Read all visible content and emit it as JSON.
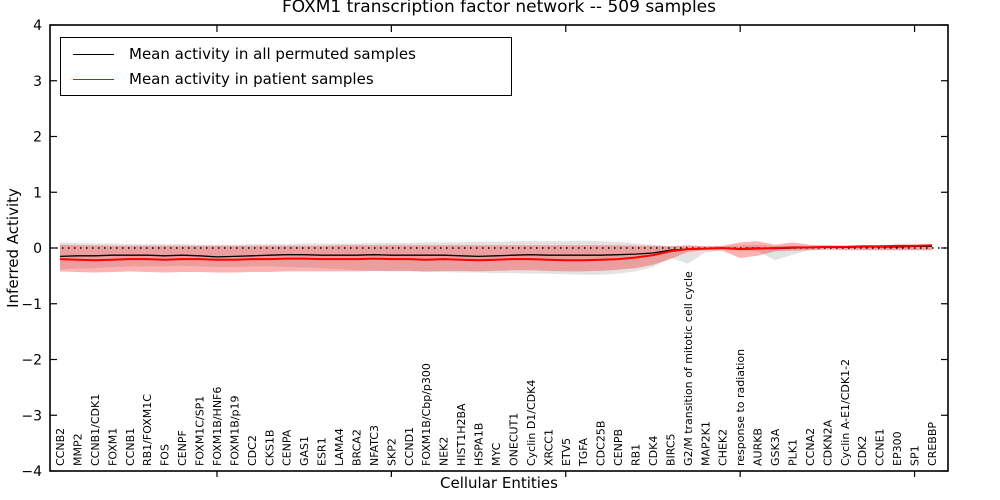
{
  "title": "FOXM1 transcription factor network -- 509 samples",
  "legend": {
    "items": [
      {
        "label": "Mean activity in all permuted samples",
        "color": "#000000"
      },
      {
        "label": "Mean activity in patient samples",
        "color": "#ff0000"
      }
    ]
  },
  "axes": {
    "ylabel": "Inferred Activity",
    "xlabel": "Cellular Entities"
  },
  "chart_data": {
    "type": "line",
    "title": "FOXM1 transcription factor network -- 509 samples",
    "xlabel": "Cellular Entities",
    "ylabel": "Inferred Activity",
    "ylim": [
      -4,
      4
    ],
    "yticks": [
      4,
      3,
      2,
      1,
      0,
      -1,
      -2,
      -3,
      -4
    ],
    "major_x_tick_indices": [
      9,
      19,
      29,
      39,
      49
    ],
    "grid": false,
    "legend_position": "upper left",
    "zero_line": {
      "y": 0,
      "style": "dotted",
      "color": "#000000"
    },
    "categories": [
      "CCNB2",
      "MMP2",
      "CCNB1/CDK1",
      "FOXM1",
      "CCNB1",
      "RB1/FOXM1C",
      "FOS",
      "CENPF",
      "FOXM1C/SP1",
      "FOXM1B/HNF6",
      "FOXM1B/p19",
      "CDC2",
      "CKS1B",
      "CENPA",
      "GAS1",
      "ESR1",
      "LAMA4",
      "BRCA2",
      "NFATC3",
      "SKP2",
      "CCND1",
      "FOXM1B/Cbp/p300",
      "NEK2",
      "HIST1H2BA",
      "HSPA1B",
      "MYC",
      "ONECUT1",
      "Cyclin D1/CDK4",
      "XRCC1",
      "ETV5",
      "TGFA",
      "CDC25B",
      "CENPB",
      "RB1",
      "CDK4",
      "BIRC5",
      "G2/M transition of mitotic cell cycle",
      "MAP2K1",
      "CHEK2",
      "response to radiation",
      "AURKB",
      "GSK3A",
      "PLK1",
      "CCNA2",
      "CDKN2A",
      "Cyclin A-E1/CDK1-2",
      "CDK2",
      "CCNE1",
      "EP300",
      "SP1",
      "CREBBP"
    ],
    "series": [
      {
        "name": "Mean activity in all permuted samples",
        "color": "#000000",
        "values": [
          -0.15,
          -0.14,
          -0.14,
          -0.13,
          -0.13,
          -0.13,
          -0.14,
          -0.13,
          -0.14,
          -0.16,
          -0.15,
          -0.14,
          -0.13,
          -0.12,
          -0.12,
          -0.13,
          -0.13,
          -0.13,
          -0.12,
          -0.13,
          -0.13,
          -0.13,
          -0.13,
          -0.14,
          -0.15,
          -0.14,
          -0.13,
          -0.12,
          -0.13,
          -0.13,
          -0.13,
          -0.13,
          -0.12,
          -0.11,
          -0.09,
          -0.04,
          -0.02,
          -0.01,
          0.0,
          -0.01,
          0.0,
          -0.01,
          0.0,
          0.01,
          0.01,
          0.01,
          0.02,
          0.02,
          0.02,
          0.03,
          0.03
        ]
      },
      {
        "name": "Mean activity in patient samples",
        "color": "#ff0000",
        "values": [
          -0.2,
          -0.21,
          -0.22,
          -0.21,
          -0.2,
          -0.2,
          -0.21,
          -0.2,
          -0.2,
          -0.21,
          -0.21,
          -0.2,
          -0.2,
          -0.19,
          -0.19,
          -0.2,
          -0.2,
          -0.2,
          -0.19,
          -0.2,
          -0.2,
          -0.21,
          -0.2,
          -0.21,
          -0.22,
          -0.21,
          -0.2,
          -0.2,
          -0.21,
          -0.22,
          -0.22,
          -0.21,
          -0.2,
          -0.17,
          -0.13,
          -0.06,
          -0.02,
          -0.01,
          0.0,
          -0.02,
          -0.01,
          0.0,
          0.01,
          0.01,
          0.02,
          0.02,
          0.03,
          0.03,
          0.04,
          0.04,
          0.05
        ]
      }
    ],
    "bands": [
      {
        "name": "permuted-confidence-band",
        "color": "#000000",
        "opacity": 0.11,
        "hi": [
          0.1,
          0.09,
          0.08,
          0.08,
          0.07,
          0.07,
          0.07,
          0.07,
          0.06,
          0.06,
          0.06,
          0.07,
          0.07,
          0.07,
          0.08,
          0.08,
          0.08,
          0.08,
          0.09,
          0.09,
          0.09,
          0.1,
          0.1,
          0.1,
          0.11,
          0.11,
          0.12,
          0.12,
          0.12,
          0.12,
          0.13,
          0.12,
          0.11,
          0.08,
          0.06,
          0.03,
          0.04,
          0.03,
          0.03,
          0.05,
          0.06,
          0.04,
          0.03,
          0.03,
          0.02,
          0.02,
          0.03,
          0.03,
          0.03,
          0.03,
          0.03
        ],
        "lo": [
          -0.38,
          -0.37,
          -0.36,
          -0.34,
          -0.33,
          -0.33,
          -0.33,
          -0.32,
          -0.33,
          -0.34,
          -0.34,
          -0.33,
          -0.33,
          -0.34,
          -0.35,
          -0.36,
          -0.38,
          -0.4,
          -0.41,
          -0.42,
          -0.42,
          -0.43,
          -0.43,
          -0.44,
          -0.44,
          -0.45,
          -0.45,
          -0.46,
          -0.46,
          -0.47,
          -0.48,
          -0.48,
          -0.46,
          -0.42,
          -0.34,
          -0.18,
          -0.28,
          -0.08,
          -0.04,
          -0.05,
          -0.06,
          -0.22,
          -0.12,
          -0.03,
          -0.02,
          -0.02,
          -0.03,
          -0.03,
          -0.03,
          -0.03,
          -0.03
        ]
      },
      {
        "name": "patient-confidence-band",
        "color": "#ff0000",
        "opacity": 0.3,
        "hi": [
          0.06,
          0.05,
          0.05,
          0.04,
          0.04,
          0.04,
          0.04,
          0.04,
          0.04,
          0.04,
          0.04,
          0.04,
          0.04,
          0.04,
          0.04,
          0.04,
          0.05,
          0.05,
          0.05,
          0.05,
          0.05,
          0.05,
          0.05,
          0.05,
          0.05,
          0.05,
          0.05,
          0.05,
          0.05,
          0.05,
          0.05,
          0.05,
          0.05,
          0.04,
          0.04,
          0.03,
          0.05,
          0.03,
          0.04,
          0.1,
          0.12,
          0.06,
          0.1,
          0.06,
          0.05,
          0.04,
          0.04,
          0.04,
          0.04,
          0.04,
          0.04
        ],
        "lo": [
          -0.42,
          -0.43,
          -0.44,
          -0.43,
          -0.42,
          -0.43,
          -0.44,
          -0.43,
          -0.43,
          -0.44,
          -0.44,
          -0.43,
          -0.43,
          -0.42,
          -0.42,
          -0.42,
          -0.42,
          -0.42,
          -0.41,
          -0.41,
          -0.41,
          -0.42,
          -0.41,
          -0.41,
          -0.42,
          -0.41,
          -0.4,
          -0.4,
          -0.41,
          -0.42,
          -0.42,
          -0.41,
          -0.39,
          -0.36,
          -0.3,
          -0.2,
          -0.07,
          -0.04,
          -0.05,
          -0.18,
          -0.14,
          -0.06,
          -0.05,
          -0.04,
          -0.03,
          -0.04,
          -0.04,
          -0.04,
          -0.04,
          -0.04,
          -0.04
        ]
      }
    ]
  }
}
